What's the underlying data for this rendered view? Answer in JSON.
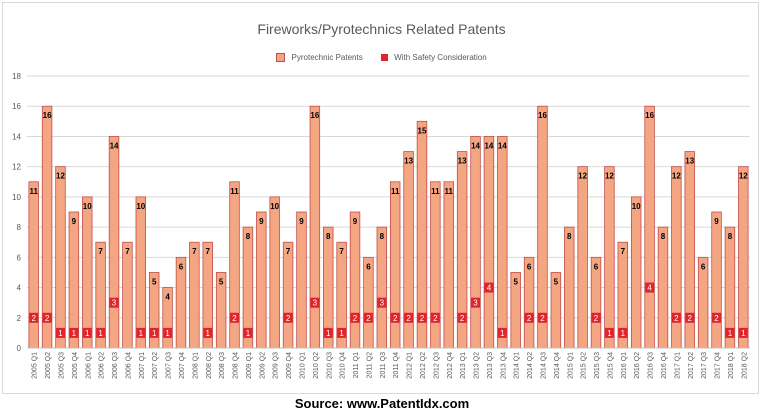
{
  "chart_data": {
    "type": "bar",
    "title": "Fireworks/Pyrotechnics Related Patents",
    "legend_position": "top-center",
    "grid": true,
    "ylim": [
      0,
      18
    ],
    "yticks": [
      0,
      2,
      4,
      6,
      8,
      10,
      12,
      14,
      16,
      18
    ],
    "categories": [
      "2005 Q1",
      "2005 Q2",
      "2005 Q3",
      "2005 Q4",
      "2006 Q1",
      "2006 Q2",
      "2006 Q3",
      "2006 Q4",
      "2007 Q1",
      "2007 Q2",
      "2007 Q3",
      "2007 Q4",
      "2008 Q1",
      "2008 Q2",
      "2008 Q3",
      "2008 Q4",
      "2009 Q1",
      "2009 Q2",
      "2009 Q3",
      "2009 Q4",
      "2010 Q1",
      "2010 Q2",
      "2010 Q3",
      "2010 Q4",
      "2011 Q1",
      "2011 Q2",
      "2011 Q3",
      "2011 Q4",
      "2012 Q1",
      "2012 Q2",
      "2012 Q3",
      "2012 Q4",
      "2013 Q1",
      "2013 Q2",
      "2013 Q3",
      "2013 Q4",
      "2014 Q1",
      "2014 Q2",
      "2014 Q3",
      "2014 Q4",
      "2015 Q1",
      "2015 Q2",
      "2015 Q3",
      "2015 Q4",
      "2016 Q1",
      "2016 Q2",
      "2016 Q3",
      "2016 Q4",
      "2017 Q1",
      "2017 Q2",
      "2017 Q3",
      "2017 Q4",
      "2018 Q1",
      "2018 Q2"
    ],
    "series": [
      {
        "name": "Pyrotechnic Patents",
        "color": "#f4a582",
        "border": "#c0504d",
        "values": [
          11,
          16,
          12,
          9,
          10,
          7,
          14,
          7,
          10,
          5,
          4,
          6,
          7,
          7,
          5,
          11,
          8,
          9,
          10,
          7,
          9,
          16,
          8,
          7,
          9,
          6,
          8,
          11,
          13,
          15,
          11,
          11,
          13,
          14,
          14,
          14,
          5,
          6,
          16,
          5,
          8,
          12,
          6,
          12,
          7,
          10,
          16,
          8,
          12,
          13,
          6,
          9,
          8,
          12
        ]
      },
      {
        "name": "With Safety Consideration",
        "color": "#e0242b",
        "values": [
          2,
          2,
          1,
          1,
          1,
          1,
          3,
          0,
          1,
          1,
          1,
          0,
          0,
          1,
          0,
          2,
          1,
          0,
          0,
          2,
          0,
          3,
          1,
          1,
          2,
          2,
          3,
          2,
          2,
          2,
          2,
          0,
          2,
          3,
          4,
          1,
          0,
          2,
          2,
          0,
          0,
          0,
          2,
          1,
          1,
          0,
          4,
          0,
          2,
          2,
          0,
          2,
          1,
          1
        ]
      }
    ]
  },
  "source": "Source: www.PatentIdx.com",
  "colors": {
    "bar_fill": "#f4a582",
    "bar_border": "#c0504d",
    "safety": "#e0242b",
    "grid": "#d9d9d9",
    "axis_text": "#595959"
  }
}
